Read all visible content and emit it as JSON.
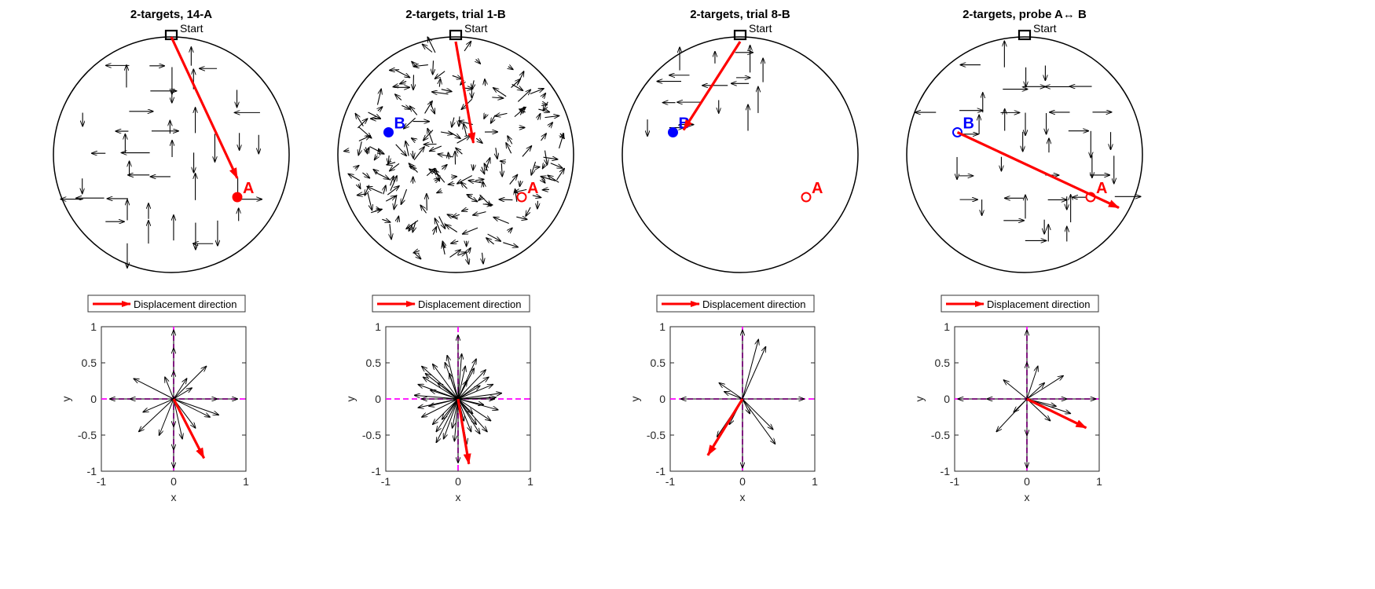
{
  "figure": {
    "start_label": "Start",
    "legend_label": "Displacement direction",
    "colors": {
      "arrow": "#000000",
      "displacement": "#ff0000",
      "target_a": "#ff0000",
      "target_b": "#0000ff",
      "axis_line": "#ff00ff"
    }
  },
  "chart_data": [
    {
      "type": "vector-field-map",
      "title": "2-targets, 14-A",
      "targets": [
        {
          "label": "A",
          "x": 0.56,
          "y": -0.36,
          "filled": true,
          "color": "#ff0000"
        }
      ],
      "displacement": {
        "from": [
          0.0,
          1.0
        ],
        "to": [
          0.56,
          -0.2
        ]
      },
      "field": "grid",
      "arrow_seed": 11
    },
    {
      "type": "vector-field-map",
      "title": "2-targets, trial 1-B",
      "targets": [
        {
          "label": "B",
          "x": -0.57,
          "y": 0.19,
          "filled": true,
          "color": "#0000ff"
        },
        {
          "label": "A",
          "x": 0.56,
          "y": -0.36,
          "filled": false,
          "color": "#ff0000"
        }
      ],
      "displacement": {
        "from": [
          0.0,
          0.96
        ],
        "to": [
          0.15,
          0.1
        ]
      },
      "field": "scattered",
      "arrow_seed": 23
    },
    {
      "type": "vector-field-map",
      "title": "2-targets, trial 8-B",
      "targets": [
        {
          "label": "B",
          "x": -0.57,
          "y": 0.19,
          "filled": true,
          "color": "#0000ff"
        },
        {
          "label": "A",
          "x": 0.56,
          "y": -0.36,
          "filled": false,
          "color": "#ff0000"
        }
      ],
      "displacement": {
        "from": [
          0.0,
          0.96
        ],
        "to": [
          -0.48,
          0.21
        ]
      },
      "field": "cluster",
      "arrow_seed": 37
    },
    {
      "type": "vector-field-map",
      "title": "2-targets, probe A↔ B",
      "targets": [
        {
          "label": "B",
          "x": -0.57,
          "y": 0.19,
          "filled": false,
          "color": "#0000ff"
        },
        {
          "label": "A",
          "x": 0.56,
          "y": -0.36,
          "filled": false,
          "color": "#ff0000"
        }
      ],
      "displacement": {
        "from": [
          -0.57,
          0.19
        ],
        "to": [
          0.8,
          -0.45
        ]
      },
      "field": "grid",
      "arrow_seed": 53
    },
    {
      "type": "compass",
      "xlabel": "x",
      "ylabel": "y",
      "xlim": [
        -1,
        1
      ],
      "ylim": [
        -1,
        1
      ],
      "xticks": [
        "-1",
        "0",
        "1"
      ],
      "yticks": [
        "1",
        "0.5",
        "0",
        "-0.5",
        "-1"
      ],
      "black_vectors": [
        [
          0,
          0.95
        ],
        [
          0,
          -0.95
        ],
        [
          0.88,
          0
        ],
        [
          -0.88,
          0
        ],
        [
          0,
          0.7
        ],
        [
          0,
          -0.7
        ],
        [
          0.6,
          0
        ],
        [
          -0.6,
          0
        ],
        [
          0,
          0.38
        ],
        [
          0,
          -0.38
        ],
        [
          -0.55,
          0.28
        ],
        [
          0.45,
          0.45
        ],
        [
          0.18,
          0.28
        ],
        [
          -0.12,
          0.3
        ],
        [
          0.5,
          -0.25
        ],
        [
          -0.48,
          -0.45
        ],
        [
          0.3,
          -0.4
        ],
        [
          -0.2,
          -0.5
        ],
        [
          0.62,
          -0.22
        ],
        [
          -0.42,
          -0.18
        ],
        [
          0.25,
          0.15
        ],
        [
          0.12,
          -0.55
        ]
      ],
      "displacement": [
        0.42,
        -0.82
      ]
    },
    {
      "type": "compass",
      "xlabel": "x",
      "ylabel": "y",
      "xlim": [
        -1,
        1
      ],
      "ylim": [
        -1,
        1
      ],
      "xticks": [
        "-1",
        "0",
        "1"
      ],
      "yticks": [
        "1",
        "0.5",
        "0",
        "-0.5",
        "-1"
      ],
      "black_vectors": [
        [
          0,
          0.88
        ],
        [
          0,
          -0.88
        ],
        [
          0.5,
          0
        ],
        [
          -0.5,
          0
        ],
        [
          -0.35,
          0.48
        ],
        [
          -0.55,
          0.2
        ],
        [
          0.25,
          0.55
        ],
        [
          0.42,
          0.3
        ],
        [
          -0.3,
          -0.45
        ],
        [
          0.3,
          -0.48
        ],
        [
          -0.5,
          -0.25
        ],
        [
          0.55,
          -0.15
        ],
        [
          -0.15,
          0.6
        ],
        [
          0.12,
          -0.62
        ],
        [
          -0.45,
          0.35
        ],
        [
          0.38,
          0.4
        ],
        [
          -0.6,
          0.05
        ],
        [
          0.6,
          0.08
        ],
        [
          -0.2,
          -0.55
        ],
        [
          0.25,
          -0.35
        ],
        [
          -0.4,
          -0.1
        ],
        [
          0.45,
          -0.3
        ],
        [
          0.1,
          0.45
        ],
        [
          -0.08,
          -0.4
        ],
        [
          -0.28,
          0.22
        ],
        [
          0.3,
          0.18
        ],
        [
          -0.35,
          -0.35
        ],
        [
          0.2,
          -0.2
        ],
        [
          -0.5,
          0.45
        ],
        [
          0.48,
          0.2
        ],
        [
          -0.12,
          0.35
        ],
        [
          0.18,
          -0.45
        ],
        [
          -0.38,
          0.12
        ],
        [
          0.35,
          -0.08
        ],
        [
          -0.22,
          -0.28
        ],
        [
          0.12,
          0.25
        ],
        [
          -0.55,
          -0.12
        ],
        [
          0.52,
          0.02
        ],
        [
          -0.18,
          0.5
        ],
        [
          0.22,
          0.42
        ],
        [
          -0.3,
          -0.6
        ],
        [
          0.08,
          -0.3
        ],
        [
          -0.48,
          0.3
        ],
        [
          0.4,
          -0.45
        ],
        [
          0.05,
          0.62
        ],
        [
          -0.05,
          -0.58
        ]
      ],
      "displacement": [
        0.15,
        -0.9
      ]
    },
    {
      "type": "compass",
      "xlabel": "x",
      "ylabel": "y",
      "xlim": [
        -1,
        1
      ],
      "ylim": [
        -1,
        1
      ],
      "xticks": [
        "-1",
        "0",
        "1"
      ],
      "yticks": [
        "1",
        "0.5",
        "0",
        "-0.5",
        "-1"
      ],
      "black_vectors": [
        [
          0,
          0.95
        ],
        [
          0,
          -0.95
        ],
        [
          0.85,
          0
        ],
        [
          -0.85,
          0
        ],
        [
          0.32,
          0.72
        ],
        [
          0.22,
          0.82
        ],
        [
          -0.32,
          0.22
        ],
        [
          0.42,
          -0.42
        ],
        [
          0.45,
          -0.62
        ],
        [
          -0.35,
          -0.52
        ],
        [
          -0.18,
          -0.35
        ],
        [
          0.1,
          -0.2
        ],
        [
          -0.25,
          0.1
        ]
      ],
      "displacement": [
        -0.48,
        -0.78
      ]
    },
    {
      "type": "compass",
      "xlabel": "x",
      "ylabel": "y",
      "xlim": [
        -1,
        1
      ],
      "ylim": [
        -1,
        1
      ],
      "xticks": [
        "-1",
        "0",
        "1"
      ],
      "yticks": [
        "1",
        "0.5",
        "0",
        "-0.5",
        "-1"
      ],
      "black_vectors": [
        [
          0,
          0.95
        ],
        [
          0,
          -0.95
        ],
        [
          0.95,
          0
        ],
        [
          -0.95,
          0
        ],
        [
          0,
          0.5
        ],
        [
          0,
          -0.5
        ],
        [
          0.55,
          0
        ],
        [
          -0.55,
          0
        ],
        [
          0.5,
          0.32
        ],
        [
          -0.32,
          0.26
        ],
        [
          0.24,
          0.22
        ],
        [
          -0.42,
          -0.45
        ],
        [
          0.32,
          -0.3
        ],
        [
          -0.18,
          -0.18
        ],
        [
          0.6,
          -0.2
        ],
        [
          0.15,
          0.45
        ],
        [
          0.4,
          -0.1
        ]
      ],
      "displacement": [
        0.82,
        -0.4
      ]
    }
  ]
}
